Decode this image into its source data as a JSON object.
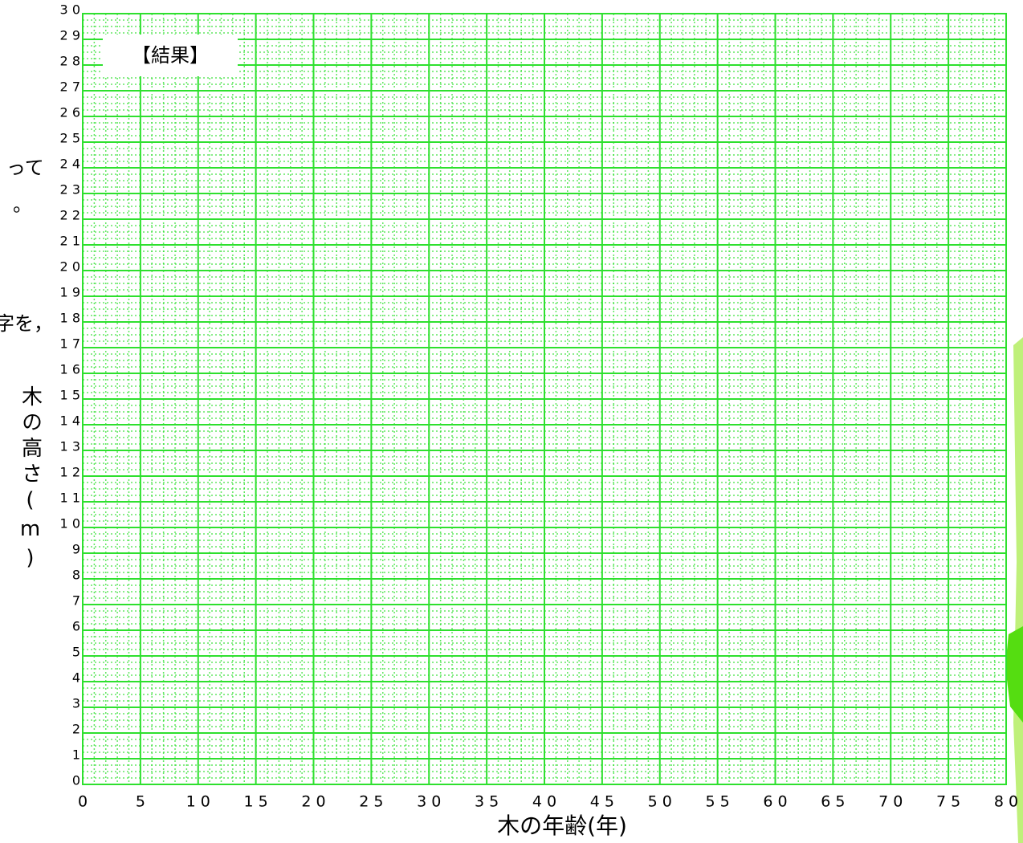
{
  "chart_data": {
    "type": "line",
    "title": "【結果】",
    "xlabel": "木の年齢(年)",
    "ylabel": "木の高さ(m)",
    "side_text": [
      "って",
      "。",
      "字を，"
    ],
    "series": [],
    "xlim": [
      0,
      80
    ],
    "xticks": [
      0,
      5,
      {
        "value": 10,
        "label": "1 0"
      },
      {
        "value": 15,
        "label": "1 5"
      },
      {
        "value": 20,
        "label": "2 0"
      },
      {
        "value": 25,
        "label": "2 5"
      },
      {
        "value": 30,
        "label": "3 0"
      },
      {
        "value": 35,
        "label": "3 5"
      },
      {
        "value": 40,
        "label": "4 0"
      },
      {
        "value": 45,
        "label": "4 5"
      },
      {
        "value": 50,
        "label": "5 0"
      },
      {
        "value": 55,
        "label": "5 5"
      },
      {
        "value": 60,
        "label": "6 0"
      },
      {
        "value": 65,
        "label": "6 5"
      },
      {
        "value": 70,
        "label": "7 0"
      },
      {
        "value": 75,
        "label": "7 5"
      },
      {
        "value": 80,
        "label": "8 0"
      }
    ],
    "ylim": [
      0,
      30
    ],
    "yticks": [
      0,
      1,
      2,
      3,
      4,
      5,
      6,
      7,
      8,
      9,
      {
        "value": 10,
        "label": "1 0"
      },
      {
        "value": 11,
        "label": "1 1"
      },
      {
        "value": 12,
        "label": "1 2"
      },
      {
        "value": 13,
        "label": "1 3"
      },
      {
        "value": 14,
        "label": "1 4"
      },
      {
        "value": 15,
        "label": "1 5"
      },
      {
        "value": 16,
        "label": "1 6"
      },
      {
        "value": 17,
        "label": "1 7"
      },
      {
        "value": 18,
        "label": "1 8"
      },
      {
        "value": 19,
        "label": "1 9"
      },
      {
        "value": 20,
        "label": "2 0"
      },
      {
        "value": 21,
        "label": "2 1"
      },
      {
        "value": 22,
        "label": "2 2"
      },
      {
        "value": 23,
        "label": "2 3"
      },
      {
        "value": 24,
        "label": "2 4"
      },
      {
        "value": 25,
        "label": "2 5"
      },
      {
        "value": 26,
        "label": "2 6"
      },
      {
        "value": 27,
        "label": "2 7"
      },
      {
        "value": 28,
        "label": "2 8"
      },
      {
        "value": 29,
        "label": "2 9"
      },
      {
        "value": 30,
        "label": "3 0"
      }
    ],
    "grid": true,
    "grid_color": "#2ee02e"
  }
}
